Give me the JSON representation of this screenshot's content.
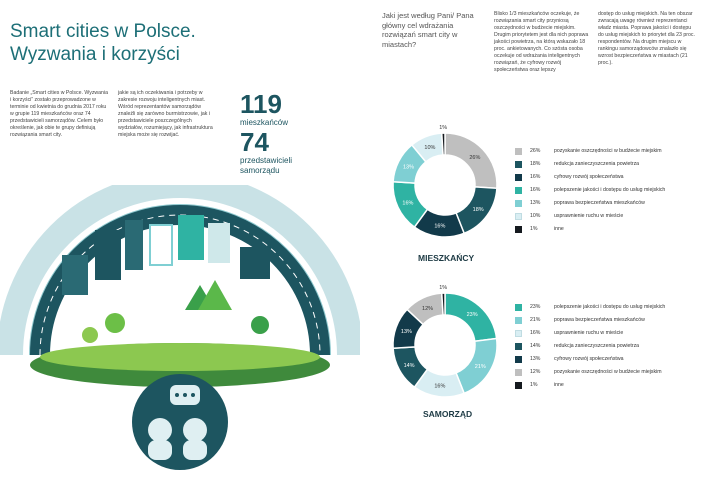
{
  "header": {
    "title_line1": "Smart cities w Polsce.",
    "title_line2": "Wyzwania i korzyści"
  },
  "intro": {
    "col1": "Badanie „Smart cities w Polsce. Wyzwania i korzyści” zostało przeprowadzone w terminie od kwietnia do grudnia 2017 roku w grupie 119 mieszkańców oraz 74 przedstawicieli samorządów. Celem było określenie, jak obie te grupy definiują rozwiązania smart city.",
    "col2": "jakie są ich oczekiwania i potrzeby w zakresie rozwoju inteligentnych miast. Wśród reprezentantów samorządów znaleźli się zarówno burmistrzowie, jak i przedstawiciele poszczególnych wydziałów, rozumiejący, jak infrastruktura miejska może się rozwijać."
  },
  "stats": {
    "residents_number": "119",
    "residents_label": "mieszkańców",
    "officials_number": "74",
    "officials_label_line1": "przedstawicieli",
    "officials_label_line2": "samorządu"
  },
  "question": "Jaki jest według Pani/ Pana główny cel wdrażania rozwiązań smart city w miastach?",
  "text_right": {
    "col1": "Blisko 1/3 mieszkańców oczekuje, że rozwiązania smart city przyniosą oszczędności w budżecie miejskim. Drugim priorytetem jest dla nich poprawa jakości powietrza, na którą wskazało 18 proc. ankietowanych. Co szósta osoba oczekuje od wdrażania inteligentnych rozwiązań, że cyfrowy rozwój społeczeństwa oraz lepszy",
    "col2": "dostęp do usług miejskich. Na ten obszar zwracają uwagę również reprezentanci władz miasta. Poprawa jakości i dostępu do usług miejskich to priorytet dla 23 proc. respondentów. Na drugim miejscu w rankingu samorządowców znalazło się wzrost bezpieczeństwa w miastach (21 proc.)."
  },
  "colors": {
    "teal_dark": "#1d5560",
    "teal": "#2fb3a3",
    "teal_light": "#7fcfd3",
    "navy": "#123a4a",
    "gray": "#bfbfbf",
    "pale": "#d9eef3",
    "black": "#151a1f"
  },
  "chart_data": [
    {
      "type": "pie",
      "title": "MIESZKAŃCY",
      "slices": [
        {
          "label": "pozyskanie oszczędności w budżecie miejskim",
          "value": 26,
          "display": "26%",
          "color": "#bfbfbf"
        },
        {
          "label": "redukcja zanieczyszczenia powietrza",
          "value": 18,
          "display": "18%",
          "color": "#1d5560"
        },
        {
          "label": "cyfrowy rozwój społeczeństwa",
          "value": 16,
          "display": "16%",
          "color": "#123a4a"
        },
        {
          "label": "polepszenie jakości i dostępu do usług miejskich",
          "value": 16,
          "display": "16%",
          "color": "#2fb3a3"
        },
        {
          "label": "poprawa bezpieczeństwa mieszkańców",
          "value": 13,
          "display": "13%",
          "color": "#7fcfd3"
        },
        {
          "label": "usprawnienie ruchu w mieście",
          "value": 10,
          "display": "10%",
          "color": "#d9eef3"
        },
        {
          "label": "inne",
          "value": 1,
          "display": "1%",
          "color": "#151a1f"
        }
      ]
    },
    {
      "type": "pie",
      "title": "SAMORZĄD",
      "slices": [
        {
          "label": "polepszenie jakości i dostępu do usług miejskich",
          "value": 23,
          "display": "23%",
          "color": "#2fb3a3"
        },
        {
          "label": "poprawa bezpieczeństwa mieszkańców",
          "value": 21,
          "display": "21%",
          "color": "#7fcfd3"
        },
        {
          "label": "usprawnienie ruchu w mieście",
          "value": 16,
          "display": "16%",
          "color": "#d9eef3"
        },
        {
          "label": "redukcja zanieczyszczenia powietrza",
          "value": 14,
          "display": "14%",
          "color": "#1d5560"
        },
        {
          "label": "cyfrowy rozwój społeczeństwa",
          "value": 13,
          "display": "13%",
          "color": "#123a4a"
        },
        {
          "label": "pozyskanie oszczędności w budżecie miejskim",
          "value": 12,
          "display": "12%",
          "color": "#bfbfbf"
        },
        {
          "label": "inne",
          "value": 1,
          "display": "1%",
          "color": "#151a1f"
        }
      ]
    }
  ]
}
